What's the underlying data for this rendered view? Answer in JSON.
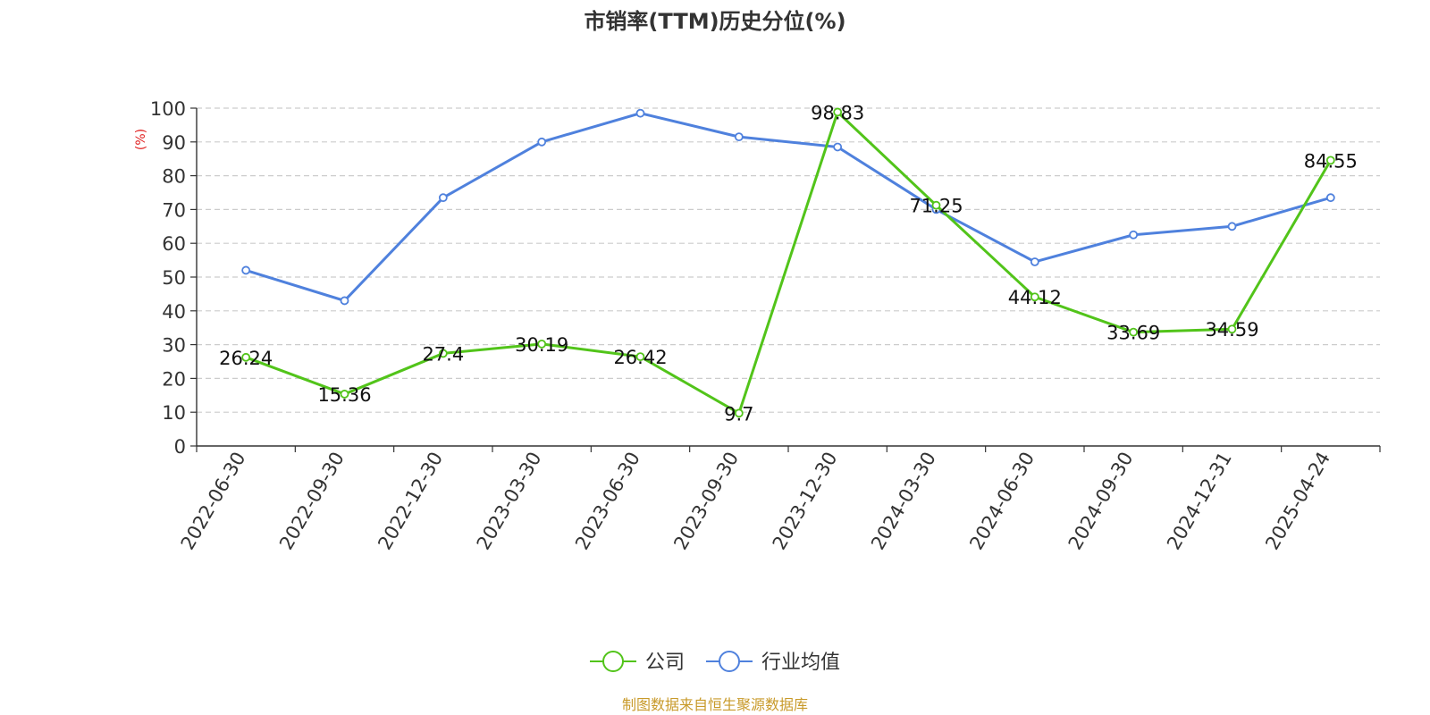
{
  "chart_data": {
    "type": "line",
    "title": "市销率(TTM)历史分位(%)",
    "ylabel": "(%)",
    "xlabel": "",
    "ylim": [
      0,
      100
    ],
    "yticks": [
      0,
      10,
      20,
      30,
      40,
      50,
      60,
      70,
      80,
      90,
      100
    ],
    "grid": true,
    "legend_position": "bottom-center",
    "categories": [
      "2022-06-30",
      "2022-09-30",
      "2022-12-30",
      "2023-03-30",
      "2023-06-30",
      "2023-09-30",
      "2023-12-30",
      "2024-03-30",
      "2024-06-30",
      "2024-09-30",
      "2024-12-31",
      "2025-04-24"
    ],
    "series": [
      {
        "name": "公司",
        "color": "#52c41a",
        "values": [
          26.24,
          15.36,
          27.4,
          30.19,
          26.42,
          9.7,
          98.83,
          71.25,
          44.12,
          33.69,
          34.59,
          84.55
        ],
        "labels": [
          "26.24",
          "15.36",
          "27.4",
          "30.19",
          "26.42",
          "9.7",
          "98.83",
          "71.25",
          "44.12",
          "33.69",
          "34.59",
          "84.55"
        ]
      },
      {
        "name": "行业均值",
        "color": "#4f81dd",
        "values": [
          52,
          43,
          73.5,
          90,
          98.5,
          91.5,
          88.5,
          70,
          54.5,
          62.5,
          65,
          73.5
        ]
      }
    ]
  },
  "footer": {
    "source": "制图数据来自恒生聚源数据库",
    "color": "#c89a2a"
  },
  "colors": {
    "ylabel": "#e02020",
    "axis": "#333333",
    "grid": "#cccccc"
  }
}
